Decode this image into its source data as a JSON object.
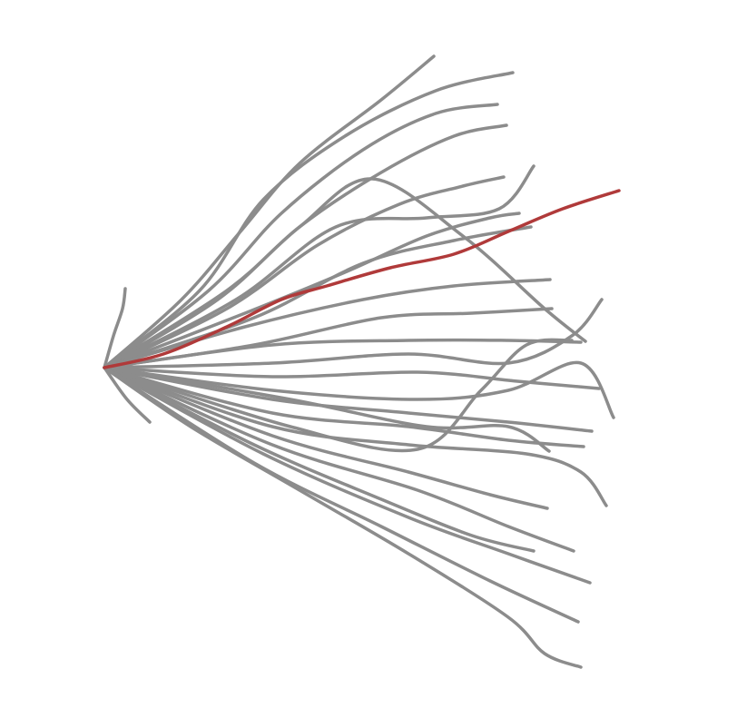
{
  "chart_data": {
    "type": "line",
    "xlim": [
      -115,
      697
    ],
    "ylim": [
      -397,
      405
    ],
    "series": [
      {
        "color": "#8c8c8c",
        "x": [
          0,
          85,
          150,
          215,
          305,
          363
        ],
        "values": [
          0,
          75,
          150,
          225,
          295,
          343
        ]
      },
      {
        "color": "#8c8c8c",
        "x": [
          0,
          105,
          175,
          265,
          365,
          450
        ],
        "values": [
          0,
          85,
          185,
          255,
          305,
          325
        ]
      },
      {
        "color": "#8c8c8c",
        "x": [
          0,
          115,
          195,
          285,
          365,
          433
        ],
        "values": [
          0,
          85,
          170,
          240,
          280,
          290
        ]
      },
      {
        "color": "#8c8c8c",
        "x": [
          0,
          125,
          215,
          305,
          385,
          443
        ],
        "values": [
          0,
          75,
          155,
          215,
          255,
          267
        ]
      },
      {
        "color": "#8c8c8c",
        "x": [
          0,
          135,
          235,
          325,
          395,
          440
        ],
        "values": [
          0,
          65,
          135,
          180,
          200,
          210
        ]
      },
      {
        "color": "#8c8c8c",
        "x": [
          0,
          145,
          255,
          355,
          435,
          473
        ],
        "values": [
          0,
          75,
          155,
          165,
          175,
          222
        ]
      },
      {
        "color": "#8c8c8c",
        "x": [
          0,
          155,
          265,
          355,
          425,
          457
        ],
        "values": [
          0,
          60,
          105,
          145,
          165,
          170
        ]
      },
      {
        "color": "#8c8c8c",
        "x": [
          0,
          165,
          285,
          385,
          470
        ],
        "values": [
          0,
          55,
          115,
          140,
          155
        ]
      },
      {
        "color": "#8c8c8c",
        "x": [
          0,
          155,
          285,
          385,
          491
        ],
        "values": [
          0,
          45,
          75,
          90,
          97
        ]
      },
      {
        "color": "#8c8c8c",
        "x": [
          0,
          165,
          305,
          405,
          493
        ],
        "values": [
          0,
          25,
          55,
          60,
          65
        ]
      },
      {
        "color": "#8c8c8c",
        "x": [
          0,
          185,
          335,
          445,
          515,
          548
        ],
        "values": [
          0,
          5,
          15,
          5,
          35,
          75
        ]
      },
      {
        "color": "#8c8c8c",
        "x": [
          0,
          135,
          215,
          295,
          395,
          485,
          530
        ],
        "values": [
          0,
          85,
          155,
          208,
          145,
          65,
          29
        ]
      },
      {
        "color": "#8c8c8c",
        "x": [
          0,
          185,
          335,
          445,
          525
        ],
        "values": [
          0,
          25,
          30,
          30,
          28
        ]
      },
      {
        "color": "#8c8c8c",
        "x": [
          0,
          185,
          345,
          455,
          545
        ],
        "values": [
          0,
          -10,
          -5,
          -15,
          -23
        ]
      },
      {
        "color": "#8c8c8c",
        "x": [
          0,
          185,
          345,
          445,
          525,
          561
        ],
        "values": [
          0,
          -25,
          -35,
          -25,
          5,
          -55
        ]
      },
      {
        "color": "#8c8c8c",
        "x": [
          0,
          185,
          335,
          445,
          537
        ],
        "values": [
          0,
          -35,
          -50,
          -60,
          -70
        ]
      },
      {
        "color": "#8c8c8c",
        "x": [
          0,
          185,
          335,
          445,
          528
        ],
        "values": [
          0,
          -50,
          -65,
          -80,
          -87
        ]
      },
      {
        "color": "#8c8c8c",
        "x": [
          0,
          205,
          345,
          415,
          465,
          515
        ],
        "values": [
          0,
          -65,
          -90,
          -25,
          25,
          30
        ]
      },
      {
        "color": "#8c8c8c",
        "x": [
          0,
          205,
          355,
          445,
          490
        ],
        "values": [
          0,
          -35,
          -65,
          -65,
          -92
        ]
      },
      {
        "color": "#8c8c8c",
        "x": [
          0,
          185,
          335,
          465,
          525,
          553
        ],
        "values": [
          0,
          -65,
          -85,
          -95,
          -115,
          -152
        ]
      },
      {
        "color": "#8c8c8c",
        "x": [
          0,
          185,
          335,
          425,
          488
        ],
        "values": [
          0,
          -75,
          -115,
          -140,
          -155
        ]
      },
      {
        "color": "#8c8c8c",
        "x": [
          0,
          185,
          345,
          445,
          517
        ],
        "values": [
          0,
          -85,
          -135,
          -175,
          -202
        ]
      },
      {
        "color": "#8c8c8c",
        "x": [
          0,
          165,
          305,
          405,
          473
        ],
        "values": [
          0,
          -85,
          -145,
          -185,
          -202
        ]
      },
      {
        "color": "#8c8c8c",
        "x": [
          0,
          175,
          335,
          445,
          535
        ],
        "values": [
          0,
          -95,
          -165,
          -205,
          -237
        ]
      },
      {
        "color": "#8c8c8c",
        "x": [
          0,
          165,
          305,
          425,
          522
        ],
        "values": [
          0,
          -105,
          -175,
          -235,
          -280
        ]
      },
      {
        "color": "#8c8c8c",
        "x": [
          0,
          95,
          215,
          335,
          445,
          485,
          525
        ],
        "values": [
          0,
          -65,
          -135,
          -205,
          -275,
          -315,
          -330
        ]
      },
      {
        "color": "#8c8c8c",
        "x": [
          0,
          25,
          50
        ],
        "values": [
          0,
          -35,
          -60
        ]
      },
      {
        "color": "#8c8c8c",
        "x": [
          0,
          10,
          20,
          23
        ],
        "values": [
          0,
          35,
          65,
          87
        ]
      },
      {
        "color": "#b03a3a",
        "x": [
          0,
          65,
          135,
          195,
          245,
          315,
          385,
          445,
          505,
          567
        ],
        "values": [
          0,
          15,
          45,
          75,
          90,
          110,
          125,
          150,
          175,
          195
        ]
      }
    ]
  }
}
